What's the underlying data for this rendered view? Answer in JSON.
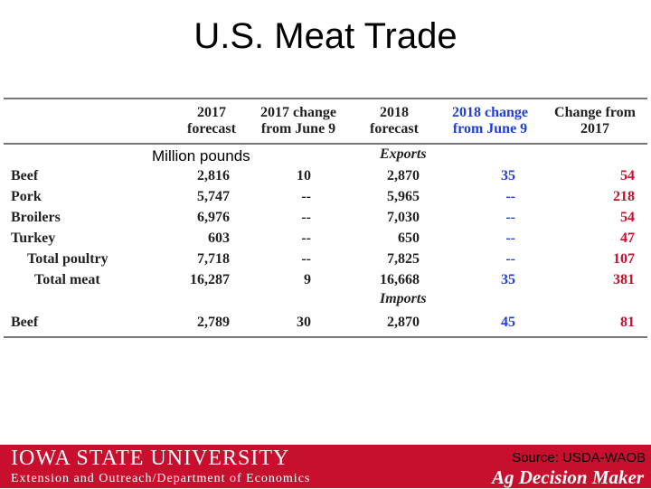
{
  "title": "U.S. Meat Trade",
  "unit_label": "Million pounds",
  "headers": {
    "c2017": [
      "2017",
      "forecast"
    ],
    "c2017chg": [
      "2017 change",
      "from June 9"
    ],
    "c2018": [
      "2018",
      "forecast"
    ],
    "c2018chg": [
      "2018 change",
      "from June 9"
    ],
    "cchg": [
      "Change from",
      "2017"
    ]
  },
  "sections": {
    "exports": "Exports",
    "imports": "Imports"
  },
  "rows": [
    {
      "label": "Beef",
      "f2017": "2,816",
      "ch2017": "10",
      "f2018": "2,870",
      "ch2018": "35",
      "chg": "54"
    },
    {
      "label": "Pork",
      "f2017": "5,747",
      "ch2017": "--",
      "f2018": "5,965",
      "ch2018": "--",
      "chg": "218"
    },
    {
      "label": "Broilers",
      "f2017": "6,976",
      "ch2017": "--",
      "f2018": "7,030",
      "ch2018": "--",
      "chg": "54"
    },
    {
      "label": "Turkey",
      "f2017": "603",
      "ch2017": "--",
      "f2018": "650",
      "ch2018": "--",
      "chg": "47"
    },
    {
      "label": "Total poultry",
      "f2017": "7,718",
      "ch2017": "--",
      "f2018": "7,825",
      "ch2018": "--",
      "chg": "107"
    },
    {
      "label": "Total meat",
      "f2017": "16,287",
      "ch2017": "9",
      "f2018": "16,668",
      "ch2018": "35",
      "chg": "381"
    }
  ],
  "import_rows": [
    {
      "label": "Beef",
      "f2017": "2,789",
      "ch2017": "30",
      "f2018": "2,870",
      "ch2018": "45",
      "chg": "81"
    }
  ],
  "footer": {
    "university": "Iowa State University",
    "department": "Extension and Outreach/Department of Economics",
    "source": "Source: USDA-WAOB",
    "brand": "Ag Decision Maker"
  },
  "colors": {
    "accent_red": "#c8102e",
    "header_blue": "#1f3fd6"
  }
}
